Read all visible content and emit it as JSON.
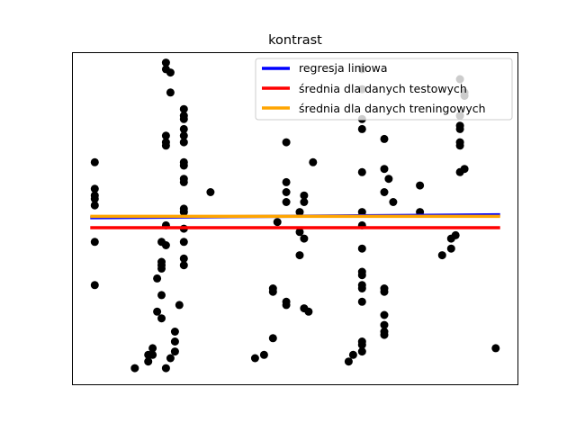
{
  "chart_data": {
    "type": "scatter",
    "title": "kontrast",
    "xlim": [
      0,
      1
    ],
    "ylim": [
      0,
      1
    ],
    "ticks_visible": false,
    "grid": false,
    "legend_placement": "top-right",
    "points": [
      [
        0.05,
        0.67
      ],
      [
        0.05,
        0.59
      ],
      [
        0.05,
        0.57
      ],
      [
        0.05,
        0.56
      ],
      [
        0.05,
        0.54
      ],
      [
        0.05,
        0.43
      ],
      [
        0.05,
        0.3
      ],
      [
        0.14,
        0.05
      ],
      [
        0.17,
        0.09
      ],
      [
        0.17,
        0.07
      ],
      [
        0.18,
        0.11
      ],
      [
        0.18,
        0.09
      ],
      [
        0.2,
        0.35
      ],
      [
        0.19,
        0.22
      ],
      [
        0.19,
        0.32
      ],
      [
        0.2,
        0.2
      ],
      [
        0.2,
        0.27
      ],
      [
        0.2,
        0.37
      ],
      [
        0.2,
        0.36
      ],
      [
        0.2,
        0.43
      ],
      [
        0.21,
        0.42
      ],
      [
        0.21,
        0.48
      ],
      [
        0.21,
        0.72
      ],
      [
        0.21,
        0.73
      ],
      [
        0.21,
        0.75
      ],
      [
        0.21,
        0.97
      ],
      [
        0.21,
        0.95
      ],
      [
        0.22,
        0.94
      ],
      [
        0.22,
        0.88
      ],
      [
        0.21,
        0.05
      ],
      [
        0.22,
        0.08
      ],
      [
        0.23,
        0.1
      ],
      [
        0.23,
        0.13
      ],
      [
        0.23,
        0.16
      ],
      [
        0.24,
        0.24
      ],
      [
        0.25,
        0.38
      ],
      [
        0.25,
        0.36
      ],
      [
        0.25,
        0.43
      ],
      [
        0.25,
        0.52
      ],
      [
        0.25,
        0.53
      ],
      [
        0.25,
        0.47
      ],
      [
        0.25,
        0.62
      ],
      [
        0.25,
        0.61
      ],
      [
        0.25,
        0.66
      ],
      [
        0.25,
        0.67
      ],
      [
        0.25,
        0.73
      ],
      [
        0.25,
        0.75
      ],
      [
        0.25,
        0.8
      ],
      [
        0.25,
        0.83
      ],
      [
        0.25,
        0.81
      ],
      [
        0.25,
        0.77
      ],
      [
        0.31,
        0.58
      ],
      [
        0.41,
        0.08
      ],
      [
        0.43,
        0.09
      ],
      [
        0.45,
        0.14
      ],
      [
        0.45,
        0.29
      ],
      [
        0.45,
        0.28
      ],
      [
        0.46,
        0.49
      ],
      [
        0.48,
        0.24
      ],
      [
        0.48,
        0.25
      ],
      [
        0.48,
        0.55
      ],
      [
        0.48,
        0.58
      ],
      [
        0.48,
        0.61
      ],
      [
        0.48,
        0.73
      ],
      [
        0.51,
        0.39
      ],
      [
        0.52,
        0.44
      ],
      [
        0.51,
        0.46
      ],
      [
        0.51,
        0.52
      ],
      [
        0.52,
        0.55
      ],
      [
        0.52,
        0.57
      ],
      [
        0.52,
        0.23
      ],
      [
        0.53,
        0.22
      ],
      [
        0.54,
        0.67
      ],
      [
        0.62,
        0.07
      ],
      [
        0.63,
        0.09
      ],
      [
        0.65,
        0.1
      ],
      [
        0.65,
        0.12
      ],
      [
        0.65,
        0.13
      ],
      [
        0.65,
        0.25
      ],
      [
        0.65,
        0.29
      ],
      [
        0.65,
        0.3
      ],
      [
        0.65,
        0.33
      ],
      [
        0.65,
        0.34
      ],
      [
        0.65,
        0.41
      ],
      [
        0.65,
        0.48
      ],
      [
        0.65,
        0.52
      ],
      [
        0.65,
        0.64
      ],
      [
        0.65,
        0.77
      ],
      [
        0.65,
        0.8
      ],
      [
        0.65,
        0.89
      ],
      [
        0.65,
        0.95
      ],
      [
        0.7,
        0.15
      ],
      [
        0.7,
        0.16
      ],
      [
        0.7,
        0.18
      ],
      [
        0.7,
        0.21
      ],
      [
        0.7,
        0.28
      ],
      [
        0.7,
        0.29
      ],
      [
        0.7,
        0.58
      ],
      [
        0.7,
        0.65
      ],
      [
        0.7,
        0.74
      ],
      [
        0.71,
        0.62
      ],
      [
        0.72,
        0.55
      ],
      [
        0.78,
        0.6
      ],
      [
        0.78,
        0.52
      ],
      [
        0.83,
        0.39
      ],
      [
        0.85,
        0.44
      ],
      [
        0.85,
        0.41
      ],
      [
        0.87,
        0.73
      ],
      [
        0.87,
        0.72
      ],
      [
        0.87,
        0.77
      ],
      [
        0.87,
        0.78
      ],
      [
        0.87,
        0.81
      ],
      [
        0.88,
        0.87
      ],
      [
        0.88,
        0.88
      ],
      [
        0.87,
        0.92
      ],
      [
        0.87,
        0.64
      ],
      [
        0.88,
        0.65
      ],
      [
        0.86,
        0.45
      ],
      [
        0.95,
        0.11
      ]
    ],
    "lines": [
      {
        "name": "regresja liniowa",
        "color": "#0000ff",
        "x": [
          0.04,
          0.96
        ],
        "y": [
          0.503,
          0.512
        ]
      },
      {
        "name": "średnia dla danych testowych",
        "color": "#ff0000",
        "x": [
          0.04,
          0.96
        ],
        "y": [
          0.473,
          0.473
        ]
      },
      {
        "name": "średnia dla danych treningowych",
        "color": "#ffa500",
        "x": [
          0.04,
          0.96
        ],
        "y": [
          0.507,
          0.507
        ]
      }
    ],
    "point_color": "#000000"
  }
}
